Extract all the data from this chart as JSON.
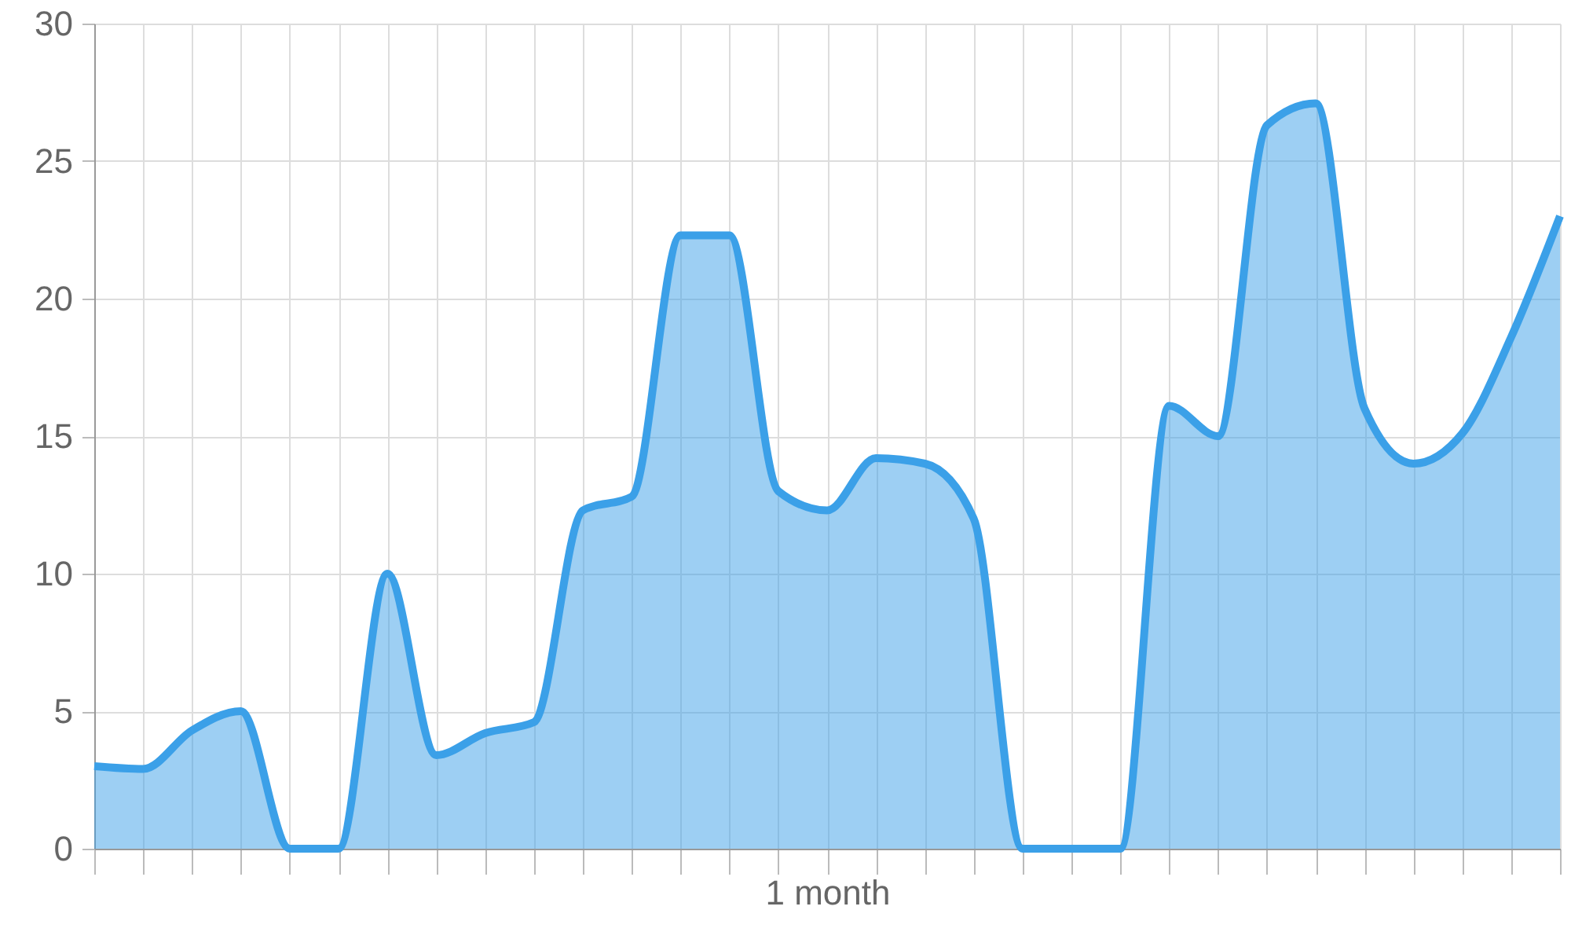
{
  "chart_data": {
    "type": "area",
    "xlabel": "1 month",
    "categories": [
      null,
      null,
      null,
      null,
      null,
      null,
      null,
      null,
      null,
      null,
      null,
      null,
      null,
      null,
      null,
      null,
      null,
      null,
      null,
      null,
      null,
      null,
      null,
      null,
      null,
      null,
      null,
      null,
      null,
      null,
      null
    ],
    "series": [
      {
        "color": "#3ba0e8",
        "values": [
          3.0,
          2.9,
          4.3,
          5.0,
          0,
          0,
          10,
          3.4,
          4.2,
          4.6,
          12.3,
          12.8,
          22.3,
          22.3,
          13,
          12.3,
          14.2,
          14,
          12,
          0,
          0,
          0,
          16.1,
          15,
          26.3,
          27.1,
          16,
          14,
          15.1,
          18.6,
          23
        ]
      }
    ],
    "ylim": [
      0,
      30
    ],
    "yticks": [
      0,
      5,
      10,
      15,
      20,
      25,
      30
    ],
    "grid": true
  }
}
